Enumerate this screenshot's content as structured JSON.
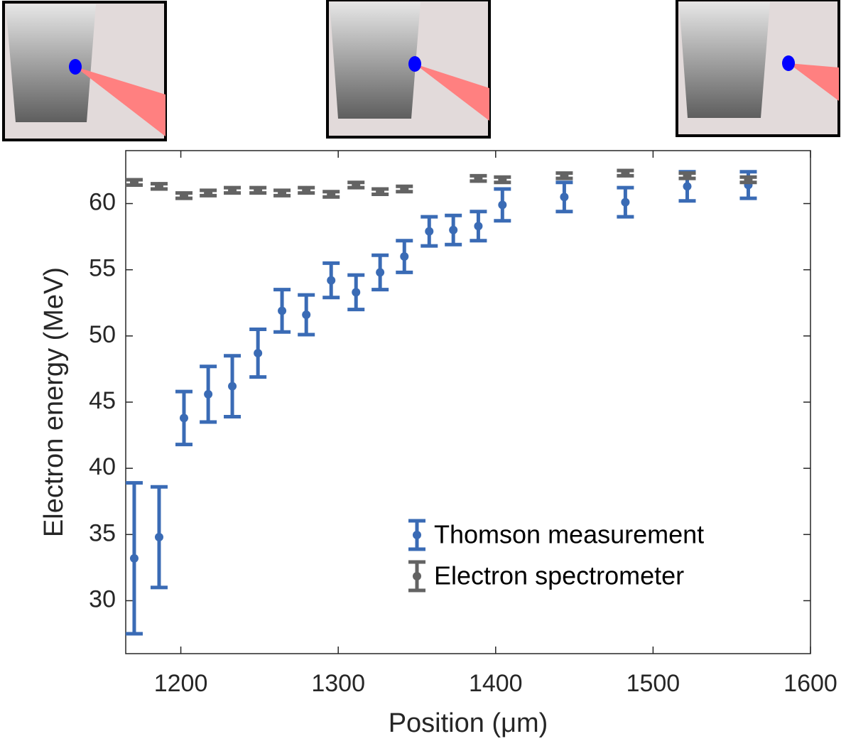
{
  "chart_data": {
    "type": "errorbar",
    "xlabel": "Position (μm)",
    "ylabel": "Electron energy (MeV)",
    "xlim": [
      1165,
      1600
    ],
    "ylim": [
      26,
      64
    ],
    "xticks": [
      1200,
      1300,
      1400,
      1500,
      1600
    ],
    "yticks": [
      30,
      35,
      40,
      45,
      50,
      55,
      60
    ],
    "legend": "lower right",
    "series": [
      {
        "name": "Thomson measurement",
        "color": "#3a6bb5",
        "x": [
          1170.4,
          1186.2,
          1202,
          1217.4,
          1232.7,
          1249,
          1264.3,
          1279.7,
          1295.5,
          1311.3,
          1326.6,
          1342,
          1357.8,
          1373.1,
          1389,
          1404.3,
          1443.6,
          1482.4,
          1521.7,
          1560.5
        ],
        "values": [
          33.2,
          34.8,
          43.8,
          45.6,
          46.2,
          48.7,
          51.9,
          51.6,
          54.2,
          53.3,
          54.8,
          56.0,
          57.9,
          58.0,
          58.3,
          59.9,
          60.5,
          60.1,
          61.3,
          61.4
        ],
        "errors": [
          5.7,
          3.8,
          2.0,
          2.1,
          2.3,
          1.8,
          1.6,
          1.5,
          1.3,
          1.3,
          1.3,
          1.2,
          1.1,
          1.1,
          1.1,
          1.2,
          1.1,
          1.1,
          1.1,
          1.0
        ]
      },
      {
        "name": "Electron spectrometer",
        "color": "#636363",
        "x": [
          1170.4,
          1186.2,
          1202,
          1217.4,
          1232.7,
          1249,
          1264.3,
          1279.7,
          1295.5,
          1311.3,
          1326.6,
          1342,
          1389,
          1404.3,
          1443.6,
          1482.4,
          1521.7,
          1560.5
        ],
        "values": [
          61.6,
          61.3,
          60.6,
          60.8,
          61.0,
          61.0,
          60.8,
          61.0,
          60.7,
          61.4,
          60.9,
          61.1,
          61.9,
          61.8,
          62.1,
          62.3,
          62.1,
          61.8
        ],
        "errors": [
          0.2,
          0.2,
          0.2,
          0.2,
          0.2,
          0.2,
          0.2,
          0.2,
          0.2,
          0.2,
          0.2,
          0.2,
          0.2,
          0.2,
          0.2,
          0.2,
          0.2,
          0.2
        ]
      }
    ]
  }
}
